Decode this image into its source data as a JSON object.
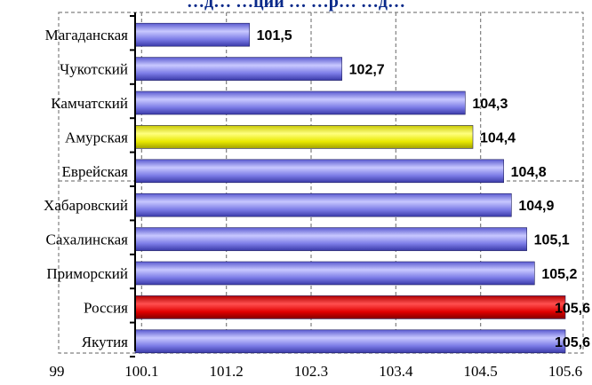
{
  "chart_data": {
    "type": "bar",
    "orientation": "horizontal",
    "title_fragment": "…д… …ции … …р… …д…",
    "categories": [
      "Магаданская",
      "Чукотский",
      "Камчатский",
      "Амурская",
      "Еврейская",
      "Хабаровский",
      "Сахалинская",
      "Приморский",
      "Россия",
      "Якутия"
    ],
    "values": [
      101.5,
      102.7,
      104.3,
      104.4,
      104.8,
      104.9,
      105.1,
      105.2,
      105.6,
      105.6
    ],
    "value_labels": [
      "101,5",
      "102,7",
      "104,3",
      "104,4",
      "104,8",
      "104,9",
      "105,1",
      "105,2",
      "105,6",
      "105,6"
    ],
    "xlim": [
      99,
      105.6
    ],
    "xticks": [
      99,
      100.1,
      101.2,
      102.3,
      103.4,
      104.5,
      105.6
    ],
    "xtick_labels": [
      "99",
      "100.1",
      "101.2",
      "102.3",
      "103.4",
      "104.5",
      "105.6"
    ],
    "bar_colors": [
      "#7b7be6",
      "#7b7be6",
      "#7b7be6",
      "#e8e800",
      "#7b7be6",
      "#7b7be6",
      "#7b7be6",
      "#7b7be6",
      "#e00000",
      "#7b7be6"
    ],
    "grid": true,
    "grid_style": "dashed",
    "legend": "none"
  }
}
